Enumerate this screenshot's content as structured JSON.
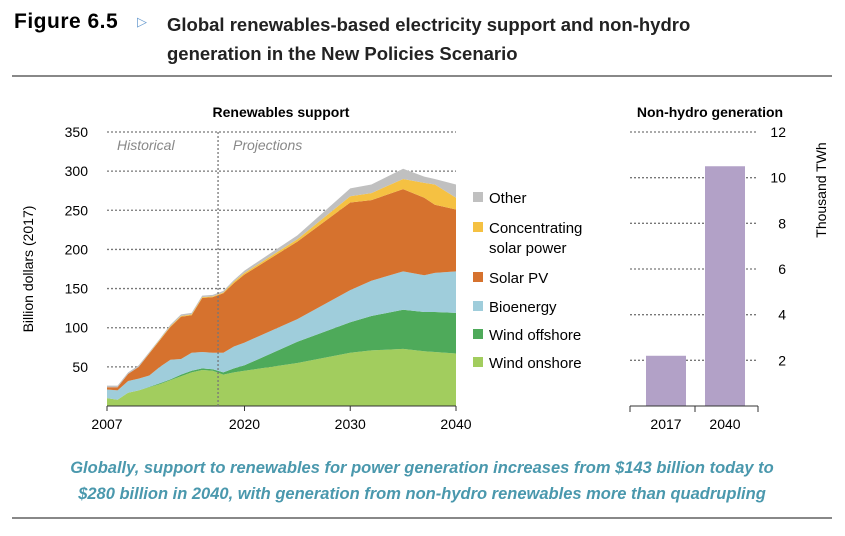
{
  "header": {
    "figure_label": "Figure 6.5",
    "arrow_icon": "triangle-right-outline",
    "title_line1": "Global renewables-based electricity support and non-hydro",
    "title_line2": "generation in the New Policies Scenario"
  },
  "caption": {
    "line1": "Globally, support to renewables for power generation increases from $143 billion today to",
    "line2": "$280 billion in 2040, with generation from non-hydro renewables more than quadrupling"
  },
  "chart_data": [
    {
      "type": "area",
      "title": "Renewables support",
      "ylabel": "Billion dollars (2017)",
      "xlabel": "",
      "ylim": [
        0,
        350
      ],
      "xlim": [
        2007,
        2040
      ],
      "yticks": [
        "50",
        "100",
        "150",
        "200",
        "250",
        "300",
        "350"
      ],
      "xticks": [
        "2007",
        "2020",
        "2030",
        "2040"
      ],
      "annotations": {
        "historical": "Historical",
        "projections": "Projections",
        "divider_year": 2017.5
      },
      "grid": true,
      "legend_placement": "right",
      "x": [
        2007,
        2008,
        2009,
        2010,
        2011,
        2012,
        2013,
        2014,
        2015,
        2016,
        2017,
        2018,
        2019,
        2020,
        2025,
        2030,
        2032,
        2035,
        2037,
        2038,
        2040
      ],
      "series": [
        {
          "name": "Wind onshore",
          "color": "#a2cd5e",
          "values": [
            10,
            8,
            17,
            20,
            24,
            28,
            33,
            38,
            43,
            46,
            45,
            40,
            43,
            45,
            55,
            68,
            71,
            73,
            70,
            69,
            67
          ]
        },
        {
          "name": "Wind offshore",
          "color": "#4eaa5a",
          "values": [
            0,
            0,
            0,
            0,
            0.5,
            1,
            1,
            2,
            2,
            2,
            2,
            3,
            5,
            7,
            27,
            39,
            44,
            50,
            50,
            51,
            52
          ]
        },
        {
          "name": "Bioenergy",
          "color": "#9fcddb",
          "values": [
            11,
            12,
            15,
            15,
            14.5,
            21,
            25,
            20,
            23,
            21,
            21,
            25,
            28,
            29,
            29,
            41,
            45,
            49,
            47,
            50,
            53
          ]
        },
        {
          "name": "Solar PV",
          "color": "#d6722e",
          "values": [
            3,
            4,
            9,
            15,
            28,
            34,
            42,
            54,
            48,
            69,
            71,
            76,
            81,
            87,
            99,
            112,
            103,
            105,
            99,
            87,
            79
          ]
        },
        {
          "name": "Concentrating solar power",
          "name_line1": "Concentrating",
          "name_line2": "solar power",
          "color": "#f5c142",
          "values": [
            0,
            0,
            0,
            0,
            0.5,
            1,
            1,
            1,
            1,
            1,
            1,
            1,
            2,
            2,
            3,
            8,
            9,
            13,
            19,
            26,
            15
          ]
        },
        {
          "name": "Other",
          "color": "#c0c0c0",
          "values": [
            2,
            2,
            2,
            2,
            1.5,
            1,
            2,
            2,
            2,
            2,
            2,
            2,
            2,
            3,
            5,
            10,
            11,
            13,
            8,
            7,
            17
          ]
        }
      ]
    },
    {
      "type": "bar",
      "title": "Non-hydro generation",
      "ylabel": "Thousand TWh",
      "ylim": [
        0,
        12
      ],
      "yticks": [
        "2",
        "4",
        "6",
        "8",
        "10",
        "12"
      ],
      "categories": [
        "2017",
        "2040"
      ],
      "values": [
        2.2,
        10.5
      ],
      "color": "#b2a1c7"
    }
  ]
}
